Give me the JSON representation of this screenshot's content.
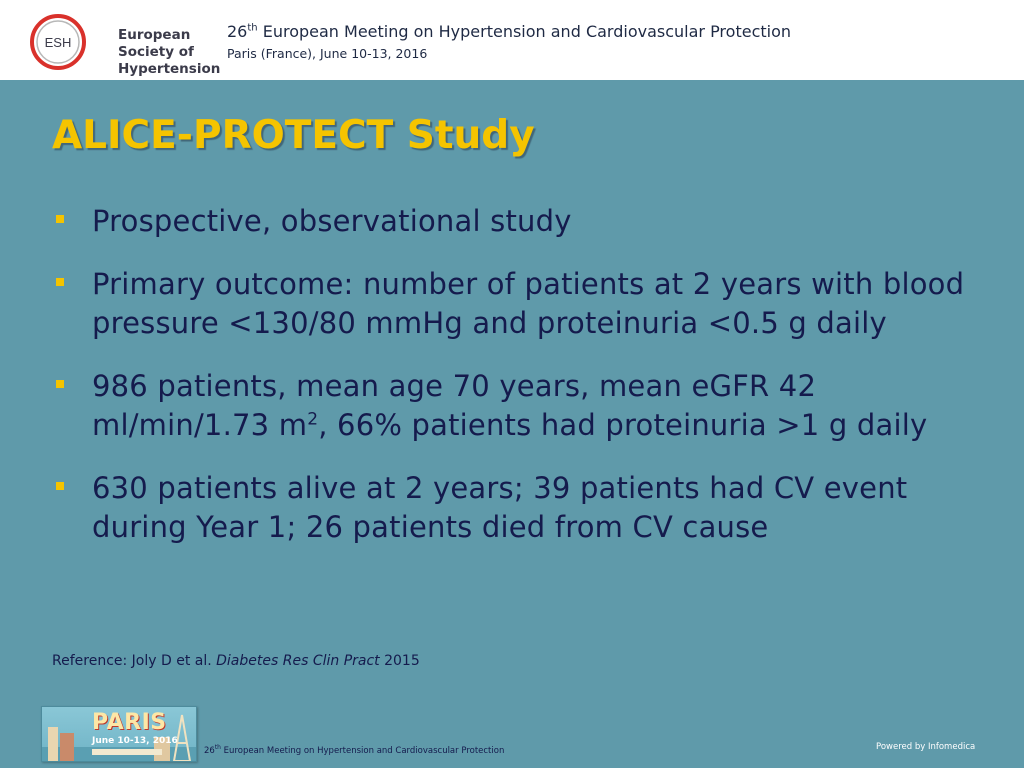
{
  "header": {
    "logo_text_line1": "European",
    "logo_text_line2": "Society of",
    "logo_text_line3": "Hypertension",
    "logo_circle_text": "ESH",
    "conference_number": "26",
    "conference_ordinal": "th",
    "conference_title_rest": " European Meeting on Hypertension and Cardiovascular Protection",
    "conference_subtitle": "Paris (France), June 10-13, 2016"
  },
  "slide": {
    "title": "ALICE-PROTECT Study",
    "bullets": [
      {
        "text": "Prospective, observational study"
      },
      {
        "text": "Primary outcome: number of patients at 2 years with blood pressure <130/80 mmHg and proteinuria <0.5 g daily"
      },
      {
        "text_before_sup": "986 patients, mean age 70 years, mean eGFR 42 ml/min/1.73 m",
        "sup": "2",
        "text_after_sup": ", 66% patients had proteinuria >1 g daily"
      },
      {
        "text": "630 patients alive at 2 years; 39 patients had CV event during Year 1; 26 patients died from CV cause"
      }
    ],
    "reference_prefix": "Reference: Joly D et al. ",
    "reference_journal": "Diabetes Res Clin Pract",
    "reference_year": " 2015"
  },
  "footer": {
    "badge_title": "PARIS",
    "badge_dates": "June 10-13, 2016",
    "footer_number": "26",
    "footer_ordinal": "th",
    "footer_rest": " European Meeting on Hypertension and Cardiovascular Protection",
    "powered_by": "Powered by Infomedica"
  },
  "colors": {
    "background": "#5f9aaa",
    "title": "#f5c400",
    "bullet_text": "#151b4d",
    "bullet_marker": "#f5c400",
    "logo_red": "#d9312b"
  }
}
